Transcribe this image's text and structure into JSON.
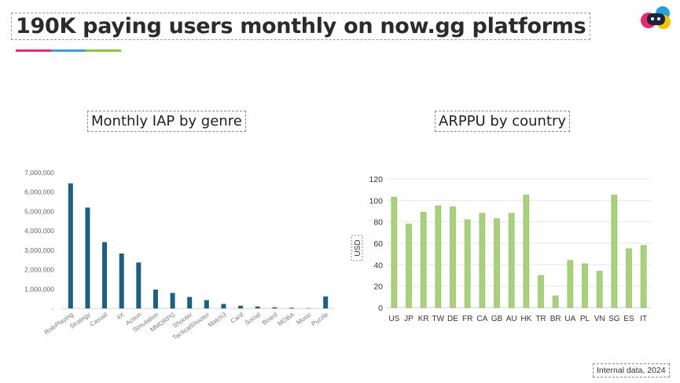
{
  "page": {
    "title": "190K paying users monthly on now.gg platforms",
    "footnote": "Internal data, 2024",
    "accent_colors": [
      "#e8286f",
      "#3aa0d8",
      "#8cc63f"
    ]
  },
  "logo": {
    "icon": "now-gg-logo-icon",
    "colors": [
      "#2a9fd8",
      "#e8286f",
      "#f5c400",
      "#1c2340"
    ]
  },
  "chart_data": [
    {
      "type": "bar",
      "title": "Monthly IAP by genre",
      "categories": [
        "RolePlaying",
        "Strategy",
        "Casual",
        "4X",
        "Action",
        "Simulation",
        "MMORPG",
        "Shooter",
        "TacticalShooter",
        "Match3",
        "Card",
        "Social",
        "Board",
        "MOBA",
        "Music",
        "Puzzle"
      ],
      "values": [
        6450000,
        5200000,
        3420000,
        2830000,
        2370000,
        970000,
        800000,
        590000,
        430000,
        230000,
        140000,
        100000,
        60000,
        40000,
        15000,
        620000
      ],
      "ylim": [
        0,
        7000000
      ],
      "yticks": [
        0,
        1000000,
        2000000,
        3000000,
        4000000,
        5000000,
        6000000,
        7000000
      ],
      "ytick_labels": [
        "-",
        "1,000,000",
        "2,000,000",
        "3,000,000",
        "4,000,000",
        "5,000,000",
        "6,000,000",
        "7,000,000"
      ],
      "color": "#1f5f80",
      "grid": false
    },
    {
      "type": "bar",
      "title": "ARPPU by country",
      "ylabel": "USD",
      "categories": [
        "US",
        "JP",
        "KR",
        "TW",
        "DE",
        "FR",
        "CA",
        "GB",
        "AU",
        "HK",
        "TR",
        "BR",
        "UA",
        "PL",
        "VN",
        "SG",
        "ES",
        "IT"
      ],
      "values": [
        103,
        78,
        89,
        95,
        94,
        82,
        88,
        83,
        88,
        105,
        30,
        11,
        44,
        41,
        34,
        105,
        55,
        58
      ],
      "ylim": [
        0,
        120
      ],
      "yticks": [
        0,
        20,
        40,
        60,
        80,
        100,
        120
      ],
      "ytick_labels": [
        "0",
        "20",
        "40",
        "60",
        "80",
        "100",
        "120"
      ],
      "color": "#a9d07d",
      "bar_stroke": "#8ab85c",
      "grid": true
    }
  ]
}
